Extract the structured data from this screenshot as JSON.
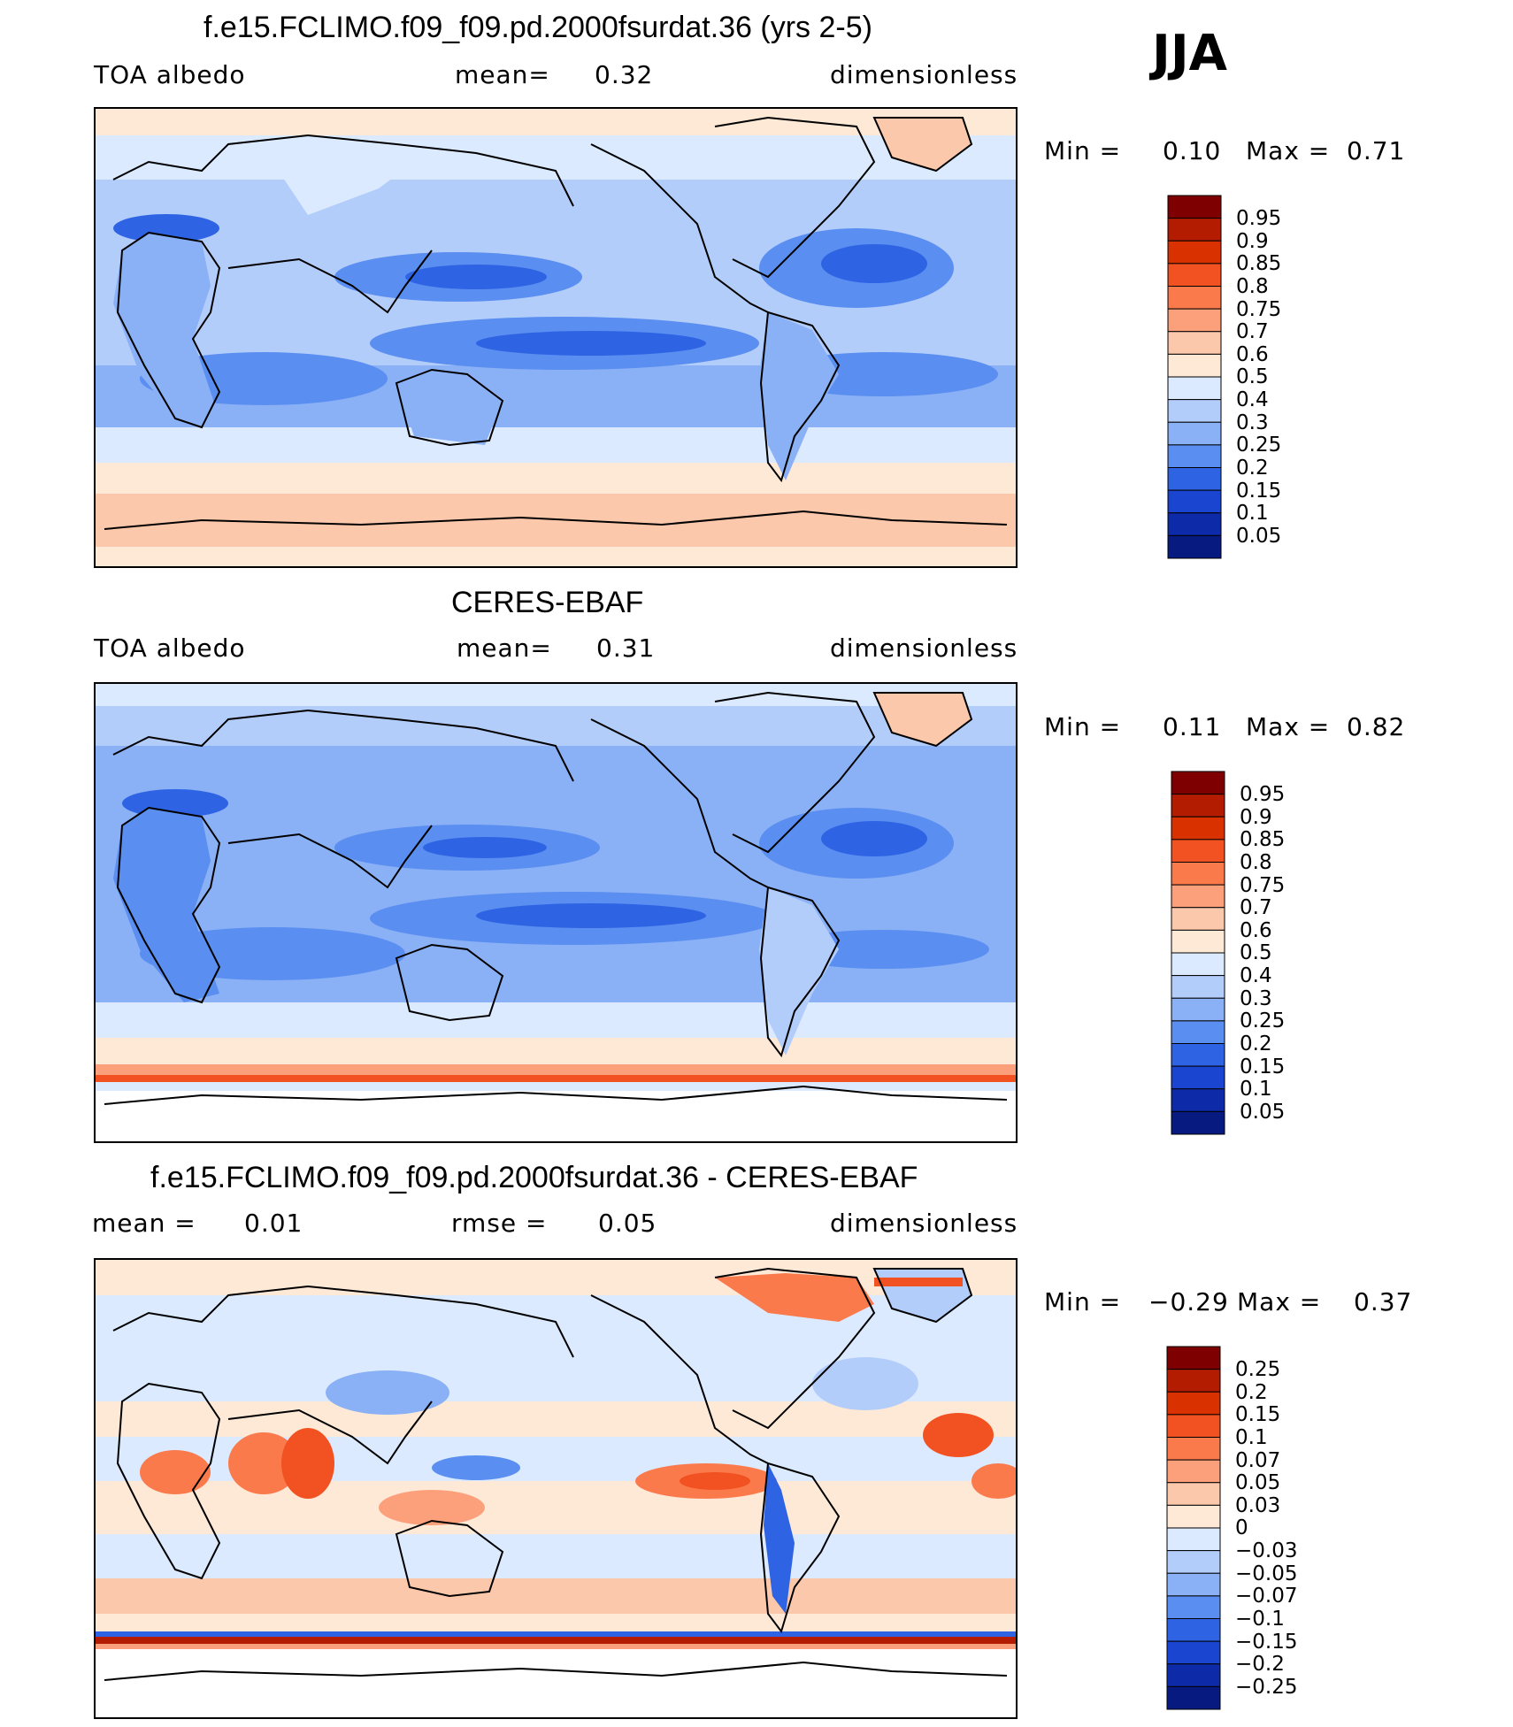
{
  "season": "JJA",
  "panels": [
    {
      "title": "f.e15.FCLIMO.f09_f09.pd.2000fsurdat.36 (yrs 2-5)",
      "left_label": "TOA  albedo",
      "stat1_label": "mean=",
      "stat1_value": "0.32",
      "stat2_label": "",
      "stat2_value": "",
      "right_label": "dimensionless",
      "min_label": "Min  =",
      "min_value": "0.10",
      "max_label": "Max  =",
      "max_value": "0.71",
      "colorbar_levels": [
        "0.95",
        "0.9",
        "0.85",
        "0.8",
        "0.75",
        "0.7",
        "0.6",
        "0.5",
        "0.4",
        "0.3",
        "0.25",
        "0.2",
        "0.15",
        "0.1",
        "0.05"
      ],
      "colorbar_colors": [
        "#7f0000",
        "#b31c00",
        "#d93200",
        "#f25222",
        "#fa7a4c",
        "#fca07c",
        "#fcc8ac",
        "#fee8d6",
        "#dbeaff",
        "#b3cdfb",
        "#8ab0f5",
        "#5a8ef0",
        "#2e64e4",
        "#1a45d0",
        "#0d2aa8",
        "#061a80"
      ]
    },
    {
      "title": "CERES-EBAF",
      "left_label": "TOA  albedo",
      "stat1_label": "mean=",
      "stat1_value": "0.31",
      "stat2_label": "",
      "stat2_value": "",
      "right_label": "dimensionless",
      "min_label": "Min  =",
      "min_value": "0.11",
      "max_label": "Max  =",
      "max_value": "0.82",
      "colorbar_levels": [
        "0.95",
        "0.9",
        "0.85",
        "0.8",
        "0.75",
        "0.7",
        "0.6",
        "0.5",
        "0.4",
        "0.3",
        "0.25",
        "0.2",
        "0.15",
        "0.1",
        "0.05"
      ],
      "colorbar_colors": [
        "#7f0000",
        "#b31c00",
        "#d93200",
        "#f25222",
        "#fa7a4c",
        "#fca07c",
        "#fcc8ac",
        "#fee8d6",
        "#dbeaff",
        "#b3cdfb",
        "#8ab0f5",
        "#5a8ef0",
        "#2e64e4",
        "#1a45d0",
        "#0d2aa8",
        "#061a80"
      ]
    },
    {
      "title": "f.e15.FCLIMO.f09_f09.pd.2000fsurdat.36 - CERES-EBAF",
      "left_label": "mean  =",
      "stat1_label": "0.01",
      "stat1_value": "",
      "stat2_label": "rmse  =",
      "stat2_value": "0.05",
      "right_label": "dimensionless",
      "min_label": "Min  =",
      "min_value": "−0.29",
      "max_label": "Max  =",
      "max_value": "0.37",
      "colorbar_levels": [
        "0.25",
        "0.2",
        "0.15",
        "0.1",
        "0.07",
        "0.05",
        "0.03",
        "0",
        "−0.03",
        "−0.05",
        "−0.07",
        "−0.1",
        "−0.15",
        "−0.2",
        "−0.25"
      ],
      "colorbar_colors": [
        "#7f0000",
        "#b31c00",
        "#d93200",
        "#f25222",
        "#fa7a4c",
        "#fca07c",
        "#fcc8ac",
        "#fee8d6",
        "#dbeaff",
        "#b3cdfb",
        "#8ab0f5",
        "#5a8ef0",
        "#2e64e4",
        "#1a45d0",
        "#0d2aa8",
        "#061a80"
      ]
    }
  ],
  "chart_data": {
    "type": "heatmap",
    "season": "JJA",
    "maps": [
      {
        "title": "f.e15.FCLIMO.f09_f09.pd.2000fsurdat.36 (yrs 2-5)",
        "variable": "TOA  albedo",
        "mean": 0.32,
        "min": 0.1,
        "max": 0.71,
        "units": "dimensionless",
        "levels": [
          0.05,
          0.1,
          0.15,
          0.2,
          0.25,
          0.3,
          0.4,
          0.5,
          0.6,
          0.7,
          0.75,
          0.8,
          0.85,
          0.9,
          0.95
        ]
      },
      {
        "title": "CERES-EBAF",
        "variable": "TOA  albedo",
        "mean": 0.31,
        "min": 0.11,
        "max": 0.82,
        "units": "dimensionless",
        "levels": [
          0.05,
          0.1,
          0.15,
          0.2,
          0.25,
          0.3,
          0.4,
          0.5,
          0.6,
          0.7,
          0.75,
          0.8,
          0.85,
          0.9,
          0.95
        ]
      },
      {
        "title": "f.e15.FCLIMO.f09_f09.pd.2000fsurdat.36 - CERES-EBAF",
        "mean": 0.01,
        "rmse": 0.05,
        "min": -0.29,
        "max": 0.37,
        "units": "dimensionless",
        "levels": [
          -0.25,
          -0.2,
          -0.15,
          -0.1,
          -0.07,
          -0.05,
          -0.03,
          0,
          0.03,
          0.05,
          0.07,
          0.1,
          0.15,
          0.2,
          0.25
        ]
      }
    ]
  }
}
